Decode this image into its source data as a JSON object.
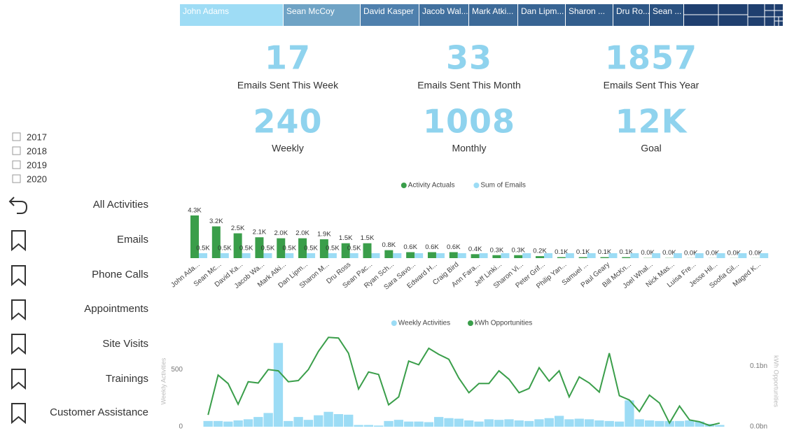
{
  "treemap": {
    "labels": [
      "John Adams",
      "Sean McCoy",
      "David Kasper",
      "Jacob Wal...",
      "Mark Atki...",
      "Dan Lipm...",
      "Sharon ...",
      "Dru Ro...",
      "Sean ..."
    ]
  },
  "kpis": [
    {
      "value": 17,
      "label": "Emails Sent This Week"
    },
    {
      "value": 33,
      "label": "Emails Sent This Month"
    },
    {
      "value": 1857,
      "label": "Emails Sent This Year"
    },
    {
      "value": 240,
      "label": "Weekly"
    },
    {
      "value": 1008,
      "label": "Monthly"
    },
    {
      "value": "12K",
      "label": "Goal"
    }
  ],
  "year_filter": [
    "2017",
    "2018",
    "2019",
    "2020"
  ],
  "nav": [
    "All Activities",
    "Emails",
    "Phone Calls",
    "Appointments",
    "Site Visits",
    "Trainings",
    "Customer Assistance"
  ],
  "chart_data": [
    {
      "type": "bar",
      "categories": [
        "John Ada...",
        "Sean Mc...",
        "David Ka...",
        "Jacob Wa...",
        "Mark Atki...",
        "Dan Lipm...",
        "Sharon M...",
        "Dru Ross",
        "Sean Pac...",
        "Ryan Sch...",
        "Sara Savo...",
        "Edward H...",
        "Craig Bird",
        "Ann Fara...",
        "Jeff Linki...",
        "Sharon Vi...",
        "Peter Grif...",
        "Philip Yan...",
        "Samuel ...",
        "Paul Geary",
        "Bill McKn...",
        "Joel Whal...",
        "Nick Mas...",
        "Luisa Fre...",
        "Jesse Hil...",
        "Soofia Gil...",
        "Maged K..."
      ],
      "series": [
        {
          "name": "Activity Actuals",
          "color": "#3a9e4a",
          "values": [
            4300,
            3200,
            2500,
            2100,
            2000,
            2000,
            1900,
            1500,
            1500,
            800,
            600,
            600,
            600,
            400,
            300,
            300,
            200,
            100,
            100,
            100,
            100,
            20,
            20,
            10,
            10,
            10,
            10
          ],
          "value_labels": [
            "4.3K",
            "3.2K",
            "2.5K",
            "2.1K",
            "2.0K",
            "2.0K",
            "1.9K",
            "1.5K",
            "1.5K",
            "0.8K",
            "0.6K",
            "0.6K",
            "0.6K",
            "0.4K",
            "0.3K",
            "0.3K",
            "0.2K",
            "0.1K",
            "0.1K",
            "0.1K",
            "0.1K",
            "0.0K",
            "0.0K",
            "0.0K",
            "0.0K",
            "0.0K",
            "0.0K"
          ]
        },
        {
          "name": "Sum of Emails",
          "color": "#9cdcf5",
          "values": [
            500,
            500,
            500,
            500,
            500,
            500,
            500,
            500,
            500,
            500,
            500,
            500,
            500,
            500,
            500,
            500,
            500,
            500,
            500,
            500,
            500,
            500,
            500,
            500,
            500,
            500,
            500
          ],
          "value_labels": [
            "0.5K",
            "0.5K",
            "0.5K",
            "0.5K",
            "0.5K",
            "0.5K",
            "0.5K",
            "0.5K",
            null,
            null,
            null,
            null,
            null,
            null,
            null,
            null,
            null,
            null,
            null,
            null,
            null,
            null,
            null,
            null,
            null,
            null,
            null
          ]
        }
      ]
    },
    {
      "type": "combo",
      "ylabel": "Weekly Activities",
      "y2label": "kWh Opportunities",
      "ylim": [
        0,
        850
      ],
      "yticks": [
        0,
        500
      ],
      "y2lim": [
        0,
        160000000
      ],
      "y2ticks": [
        {
          "value": 0,
          "label": "0.0bn"
        },
        {
          "value": 100000000,
          "label": "0.1bn"
        }
      ],
      "series": [
        {
          "name": "Weekly Activities",
          "type": "bar",
          "color": "#9cdcf5",
          "values": [
            50,
            50,
            45,
            55,
            65,
            85,
            120,
            732,
            50,
            85,
            60,
            100,
            130,
            110,
            105,
            15,
            15,
            10,
            50,
            60,
            45,
            45,
            40,
            85,
            75,
            70,
            55,
            45,
            65,
            60,
            65,
            55,
            50,
            65,
            75,
            95,
            65,
            70,
            65,
            55,
            50,
            45,
            230,
            65,
            55,
            50,
            50,
            50,
            55,
            45,
            25,
            15
          ]
        },
        {
          "name": "kWh Opportunities",
          "type": "line",
          "axis": "y2",
          "color": "#3a9e4a",
          "values": [
            19500000,
            85000000,
            71000000,
            37000000,
            74000000,
            72000000,
            94000000,
            92000000,
            74000000,
            76000000,
            94000000,
            124000000,
            147000000,
            146000000,
            121000000,
            62000000,
            90000000,
            86000000,
            36000000,
            49000000,
            108000000,
            102000000,
            129000000,
            119000000,
            111000000,
            80000000,
            56000000,
            71000000,
            71000000,
            92000000,
            78000000,
            56000000,
            63000000,
            97000000,
            75000000,
            92000000,
            49000000,
            82000000,
            72000000,
            57000000,
            121000000,
            51000000,
            44000000,
            25000000,
            52000000,
            39000000,
            6000000,
            34000000,
            11000000,
            8000000,
            2000000,
            6000000
          ]
        }
      ]
    }
  ]
}
